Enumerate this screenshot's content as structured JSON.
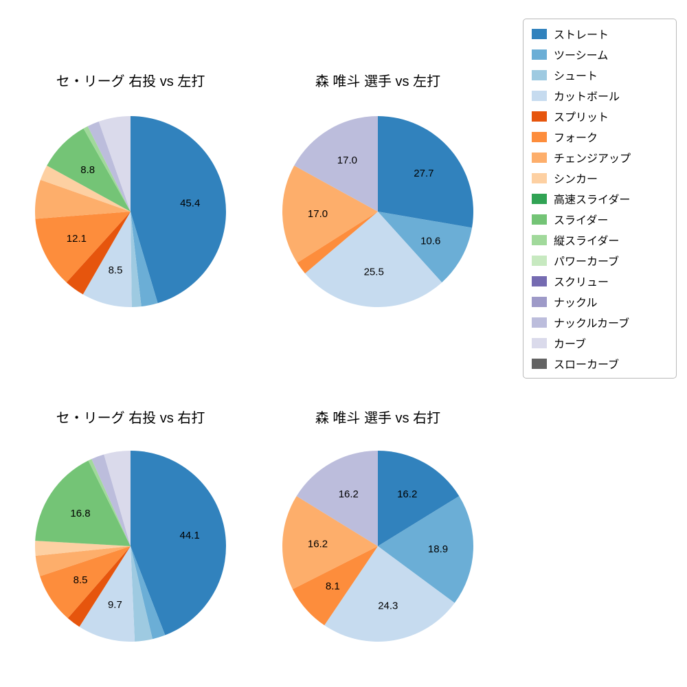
{
  "page": {
    "background": "#ffffff"
  },
  "legend": {
    "items": [
      {
        "label": "ストレート",
        "color": "#3182bd"
      },
      {
        "label": "ツーシーム",
        "color": "#6baed6"
      },
      {
        "label": "シュート",
        "color": "#9ecae1"
      },
      {
        "label": "カットボール",
        "color": "#c6dbef"
      },
      {
        "label": "スプリット",
        "color": "#e6550d"
      },
      {
        "label": "フォーク",
        "color": "#fd8d3c"
      },
      {
        "label": "チェンジアップ",
        "color": "#fdae6b"
      },
      {
        "label": "シンカー",
        "color": "#fdd0a2"
      },
      {
        "label": "高速スライダー",
        "color": "#31a354"
      },
      {
        "label": "スライダー",
        "color": "#74c476"
      },
      {
        "label": "縦スライダー",
        "color": "#a1d99b"
      },
      {
        "label": "パワーカーブ",
        "color": "#c7e9c0"
      },
      {
        "label": "スクリュー",
        "color": "#756bb1"
      },
      {
        "label": "ナックル",
        "color": "#9e9ac8"
      },
      {
        "label": "ナックルカーブ",
        "color": "#bcbddc"
      },
      {
        "label": "カーブ",
        "color": "#dadaeb"
      },
      {
        "label": "スローカーブ",
        "color": "#636363"
      }
    ]
  },
  "chart_data": [
    {
      "type": "pie",
      "title": "セ・リーグ 右投 vs 左打",
      "start_angle_deg": 0,
      "direction": "clockwise",
      "label_min_pct": 8.0,
      "labeled_values_shown": [
        45.4,
        8.5,
        12.1,
        8.8
      ],
      "slices": [
        {
          "label": "ストレート",
          "value": 45.4
        },
        {
          "label": "ツーシーム",
          "value": 2.8
        },
        {
          "label": "シュート",
          "value": 1.6
        },
        {
          "label": "カットボール",
          "value": 8.5
        },
        {
          "label": "スプリット",
          "value": 3.4
        },
        {
          "label": "フォーク",
          "value": 12.1
        },
        {
          "label": "チェンジアップ",
          "value": 6.6
        },
        {
          "label": "シンカー",
          "value": 2.6
        },
        {
          "label": "スライダー",
          "value": 8.8
        },
        {
          "label": "縦スライダー",
          "value": 0.8
        },
        {
          "label": "ナックルカーブ",
          "value": 2.0
        },
        {
          "label": "カーブ",
          "value": 5.4
        }
      ]
    },
    {
      "type": "pie",
      "title": "森 唯斗 選手 vs 左打",
      "start_angle_deg": 0,
      "direction": "clockwise",
      "label_min_pct": 8.0,
      "labeled_values_shown": [
        27.7,
        10.6,
        25.5,
        17.0,
        17.0
      ],
      "slices": [
        {
          "label": "ストレート",
          "value": 27.7
        },
        {
          "label": "ツーシーム",
          "value": 10.6
        },
        {
          "label": "カットボール",
          "value": 25.5
        },
        {
          "label": "フォーク",
          "value": 2.2
        },
        {
          "label": "チェンジアップ",
          "value": 17.0
        },
        {
          "label": "ナックルカーブ",
          "value": 17.0
        }
      ]
    },
    {
      "type": "pie",
      "title": "セ・リーグ 右投 vs 右打",
      "start_angle_deg": 0,
      "direction": "clockwise",
      "label_min_pct": 8.0,
      "labeled_values_shown": [
        44.1,
        9.7,
        8.5,
        16.8
      ],
      "slices": [
        {
          "label": "ストレート",
          "value": 44.1
        },
        {
          "label": "ツーシーム",
          "value": 2.2
        },
        {
          "label": "シュート",
          "value": 3.0
        },
        {
          "label": "カットボール",
          "value": 9.7
        },
        {
          "label": "スプリット",
          "value": 2.4
        },
        {
          "label": "フォーク",
          "value": 8.5
        },
        {
          "label": "チェンジアップ",
          "value": 3.5
        },
        {
          "label": "シンカー",
          "value": 2.5
        },
        {
          "label": "スライダー",
          "value": 16.8
        },
        {
          "label": "縦スライダー",
          "value": 0.6
        },
        {
          "label": "ナックルカーブ",
          "value": 2.2
        },
        {
          "label": "カーブ",
          "value": 4.5
        }
      ]
    },
    {
      "type": "pie",
      "title": "森 唯斗 選手 vs 右打",
      "start_angle_deg": 0,
      "direction": "clockwise",
      "label_min_pct": 8.0,
      "labeled_values_shown": [
        16.2,
        18.9,
        24.3,
        8.1,
        16.2,
        16.2
      ],
      "slices": [
        {
          "label": "ストレート",
          "value": 16.2
        },
        {
          "label": "ツーシーム",
          "value": 18.9
        },
        {
          "label": "カットボール",
          "value": 24.3
        },
        {
          "label": "フォーク",
          "value": 8.1
        },
        {
          "label": "チェンジアップ",
          "value": 16.2
        },
        {
          "label": "ナックルカーブ",
          "value": 16.2
        }
      ]
    }
  ]
}
